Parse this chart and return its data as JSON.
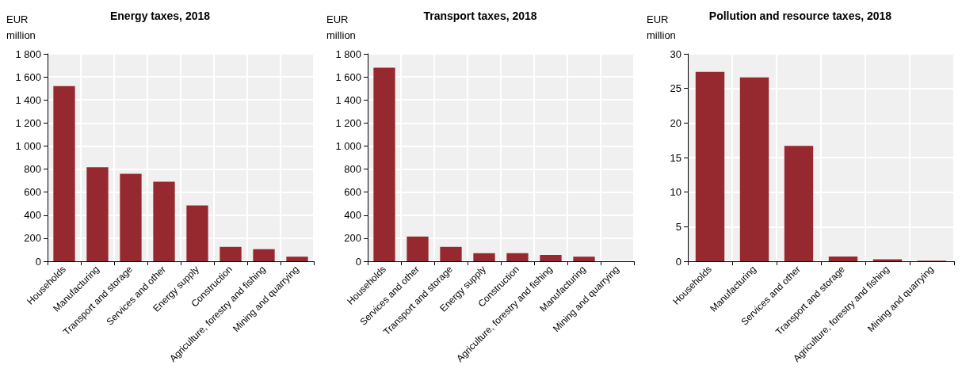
{
  "chart_data": [
    {
      "type": "bar",
      "title": "Energy taxes, 2018",
      "ylabel": "EUR million",
      "categories": [
        "Households",
        "Manufacturing",
        "Transport and storage",
        "Services and other",
        "Energy supply",
        "Construction",
        "Agriculture, forestry and fishing",
        "Mining and quarrying"
      ],
      "values": [
        1520,
        815,
        760,
        690,
        485,
        125,
        105,
        40
      ],
      "color": "#962830",
      "ylim": [
        0,
        1800
      ],
      "yticks": [
        0,
        200,
        400,
        600,
        800,
        {
          "value": 1000,
          "label": "1 000"
        },
        {
          "value": 1200,
          "label": "1 200"
        },
        {
          "value": 1400,
          "label": "1 400"
        },
        {
          "value": 1600,
          "label": "1 600"
        },
        {
          "value": 1800,
          "label": "1 800"
        }
      ],
      "grid": true
    },
    {
      "type": "bar",
      "title": "Transport taxes, 2018",
      "ylabel": "EUR million",
      "categories": [
        "Households",
        "Services and other",
        "Transport and storage",
        "Energy supply",
        "Construction",
        "Agriculture, forestry and fishing",
        "Manufacturing",
        "Mining and quarrying"
      ],
      "values": [
        1680,
        215,
        125,
        70,
        70,
        55,
        40,
        null
      ],
      "color": "#962830",
      "ylim": [
        0,
        1800
      ],
      "yticks": [
        0,
        200,
        400,
        600,
        800,
        {
          "value": 1000,
          "label": "1 000"
        },
        {
          "value": 1200,
          "label": "1 200"
        },
        {
          "value": 1400,
          "label": "1 400"
        },
        {
          "value": 1600,
          "label": "1 600"
        },
        {
          "value": 1800,
          "label": "1 800"
        }
      ],
      "grid": true
    },
    {
      "type": "bar",
      "title": "Pollution and resource taxes, 2018",
      "ylabel": "EUR million",
      "categories": [
        "Households",
        "Manufacturing",
        "Services and other",
        "Transport and storage",
        "Agriculture, forestry and fishing",
        "Mining and quarrying"
      ],
      "values": [
        27.4,
        26.6,
        16.7,
        0.7,
        0.3,
        0.1
      ],
      "color": "#962830",
      "ylim": [
        0,
        30
      ],
      "yticks": [
        0,
        5,
        10,
        15,
        20,
        25,
        30
      ],
      "grid": true
    }
  ]
}
